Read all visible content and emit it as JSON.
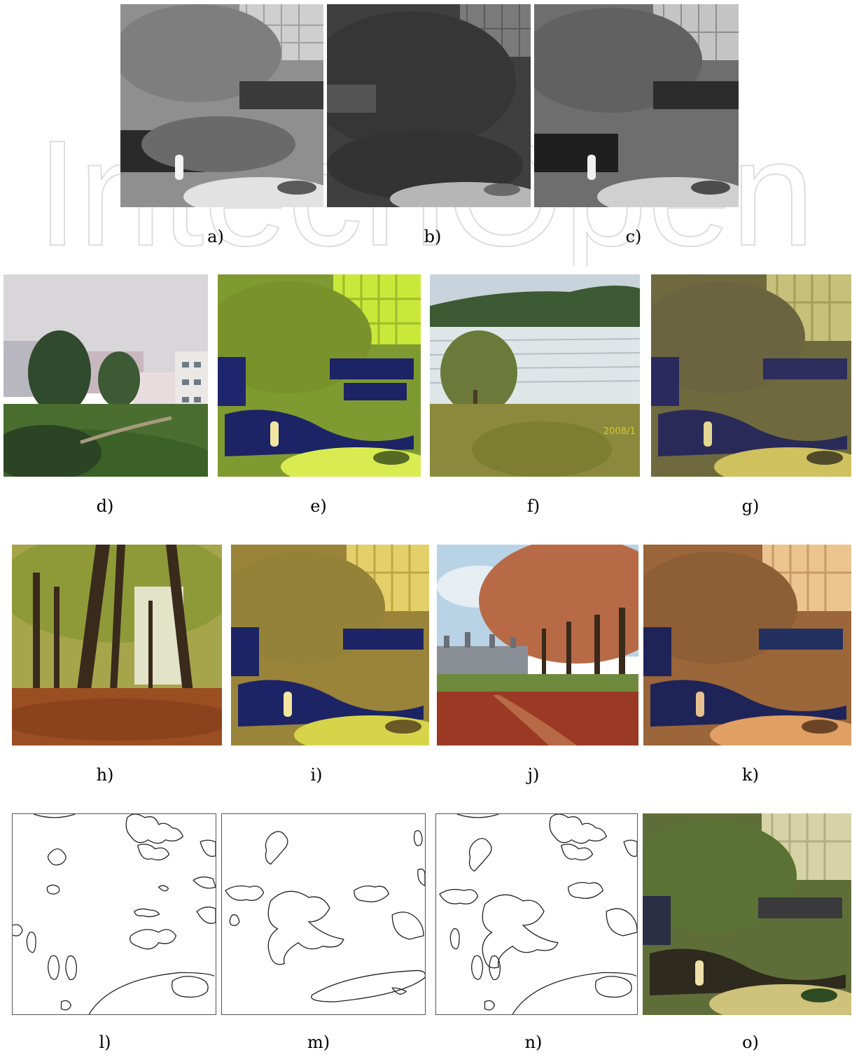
{
  "watermark": {
    "text": "IntechOpen",
    "color": "#e6e6e6"
  },
  "rows": [
    {
      "panels": [
        {
          "id": "a",
          "caption": "a)",
          "kind": "ir_gray_light"
        },
        {
          "id": "b",
          "caption": "b)",
          "kind": "visible_gray_dark"
        },
        {
          "id": "c",
          "caption": "c)",
          "kind": "fused_gray"
        }
      ]
    },
    {
      "panels": [
        {
          "id": "d",
          "caption": "d)",
          "kind": "photo_campus"
        },
        {
          "id": "e",
          "caption": "e)",
          "kind": "color_green_yellow"
        },
        {
          "id": "f",
          "caption": "f)",
          "kind": "photo_terraces",
          "stamp": "2008/1"
        },
        {
          "id": "g",
          "caption": "g)",
          "kind": "color_olive"
        }
      ]
    },
    {
      "panels": [
        {
          "id": "h",
          "caption": "h)",
          "kind": "photo_autumn_forest"
        },
        {
          "id": "i",
          "caption": "i)",
          "kind": "color_golden"
        },
        {
          "id": "j",
          "caption": "j)",
          "kind": "photo_chateau"
        },
        {
          "id": "k",
          "caption": "k)",
          "kind": "color_copper"
        }
      ]
    },
    {
      "panels": [
        {
          "id": "l",
          "caption": "l)",
          "kind": "edge_map"
        },
        {
          "id": "m",
          "caption": "m)",
          "kind": "edge_map"
        },
        {
          "id": "n",
          "caption": "n)",
          "kind": "edge_map"
        },
        {
          "id": "o",
          "caption": "o)",
          "kind": "color_natural"
        }
      ]
    }
  ],
  "colors": {
    "ir_light": "#9a9a9a",
    "visible_dark": "#4a4a4a",
    "green_yellow": "#8aa032",
    "olive": "#7a7042",
    "golden": "#a08a3c",
    "copper": "#9c6a3a",
    "natural": "#5f6e38",
    "person_highlight": "#f2e6a0",
    "dark_blue": "#1c2466"
  }
}
